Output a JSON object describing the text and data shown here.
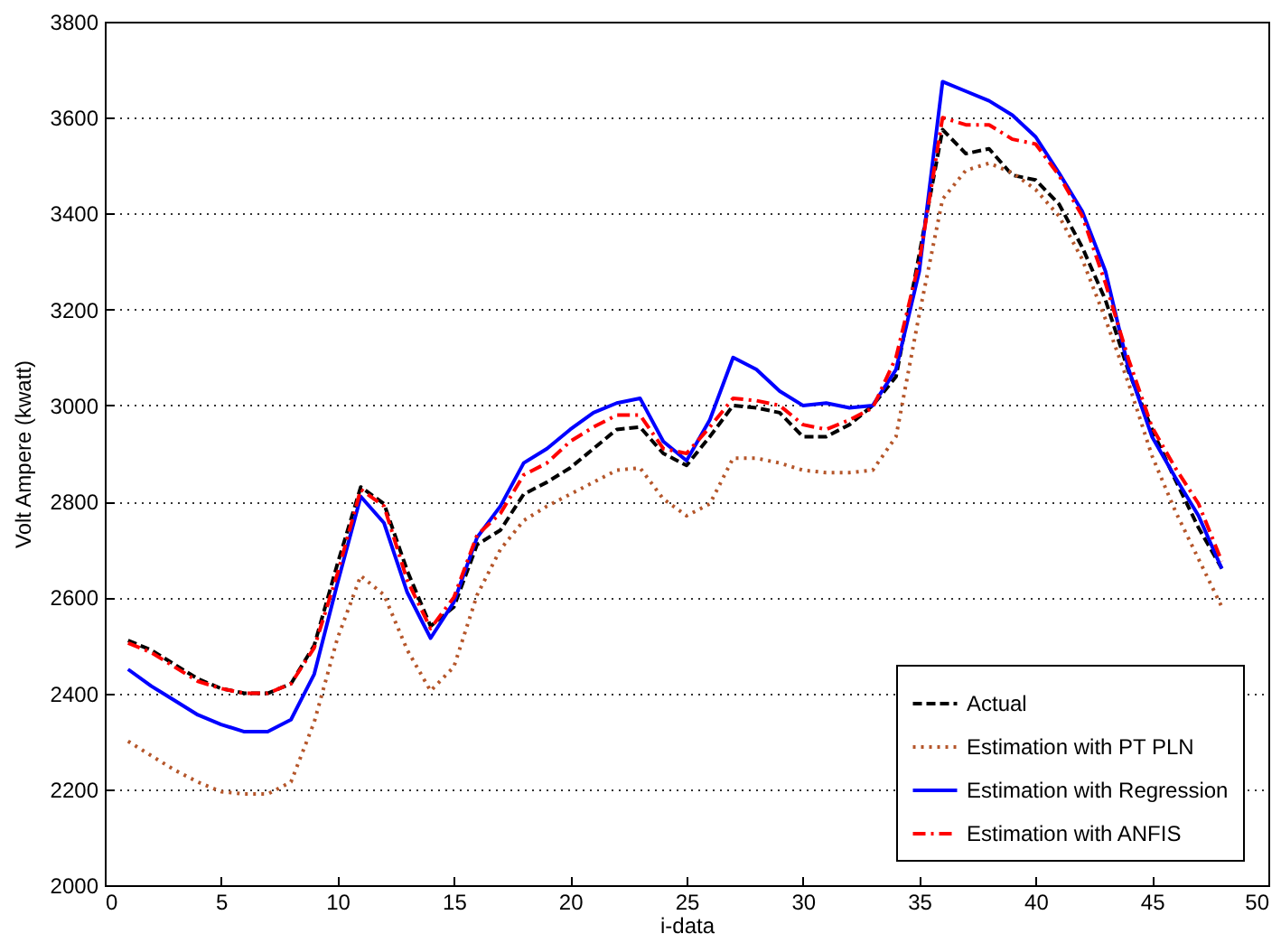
{
  "chart_data": {
    "type": "line",
    "xlabel": "i-data",
    "ylabel": "Volt Ampere (kwatt)",
    "x": [
      1,
      2,
      3,
      4,
      5,
      6,
      7,
      8,
      9,
      10,
      11,
      12,
      13,
      14,
      15,
      16,
      17,
      18,
      19,
      20,
      21,
      22,
      23,
      24,
      25,
      26,
      27,
      28,
      29,
      30,
      31,
      32,
      33,
      34,
      35,
      36,
      37,
      38,
      39,
      40,
      41,
      42,
      43,
      44,
      45,
      46,
      47,
      48
    ],
    "series": [
      {
        "name": "Actual",
        "color": "#000000",
        "line_style": "dashed",
        "values": [
          2510,
          2490,
          2460,
          2430,
          2410,
          2400,
          2400,
          2420,
          2500,
          2670,
          2830,
          2795,
          2655,
          2540,
          2580,
          2710,
          2740,
          2815,
          2840,
          2870,
          2910,
          2950,
          2955,
          2900,
          2875,
          2935,
          3000,
          2995,
          2985,
          2935,
          2935,
          2960,
          3000,
          3060,
          3315,
          3575,
          3525,
          3535,
          3480,
          3470,
          3420,
          3330,
          3220,
          3070,
          2950,
          2845,
          2745,
          2660
        ]
      },
      {
        "name": "Estimation with PT PLN",
        "color": "#b5562a",
        "line_style": "dotted",
        "values": [
          2300,
          2270,
          2240,
          2215,
          2195,
          2190,
          2190,
          2215,
          2340,
          2515,
          2645,
          2605,
          2490,
          2405,
          2455,
          2605,
          2700,
          2760,
          2790,
          2815,
          2840,
          2865,
          2870,
          2805,
          2770,
          2795,
          2890,
          2890,
          2880,
          2865,
          2860,
          2860,
          2865,
          2935,
          3190,
          3430,
          3490,
          3505,
          3485,
          3450,
          3395,
          3305,
          3180,
          3045,
          2895,
          2780,
          2680,
          2580
        ]
      },
      {
        "name": "Estimation with Regression",
        "color": "#0000ff",
        "line_style": "solid",
        "values": [
          2450,
          2415,
          2385,
          2355,
          2335,
          2320,
          2320,
          2345,
          2440,
          2630,
          2810,
          2755,
          2610,
          2515,
          2590,
          2725,
          2790,
          2880,
          2910,
          2950,
          2985,
          3005,
          3015,
          2925,
          2885,
          2970,
          3100,
          3075,
          3030,
          3000,
          3005,
          2995,
          3000,
          3075,
          3280,
          3675,
          3655,
          3635,
          3605,
          3560,
          3485,
          3405,
          3280,
          3075,
          2935,
          2850,
          2770,
          2660
        ]
      },
      {
        "name": "Estimation with ANFIS",
        "color": "#ff0000",
        "line_style": "dashdot",
        "values": [
          2505,
          2485,
          2455,
          2425,
          2410,
          2400,
          2400,
          2420,
          2495,
          2650,
          2825,
          2790,
          2635,
          2535,
          2600,
          2730,
          2775,
          2855,
          2880,
          2925,
          2955,
          2980,
          2980,
          2910,
          2900,
          2955,
          3015,
          3010,
          3000,
          2960,
          2950,
          2970,
          2995,
          3100,
          3300,
          3600,
          3585,
          3585,
          3555,
          3545,
          3480,
          3395,
          3255,
          3095,
          2955,
          2870,
          2795,
          2675
        ]
      }
    ],
    "xlim": [
      0,
      50
    ],
    "xticks": [
      0,
      5,
      10,
      15,
      20,
      25,
      30,
      35,
      40,
      45,
      50
    ],
    "ylim": [
      2000,
      3800
    ],
    "yticks": [
      2000,
      2200,
      2400,
      2600,
      2800,
      3000,
      3200,
      3400,
      3600,
      3800
    ],
    "grid": "y",
    "legend": "bottom right"
  }
}
